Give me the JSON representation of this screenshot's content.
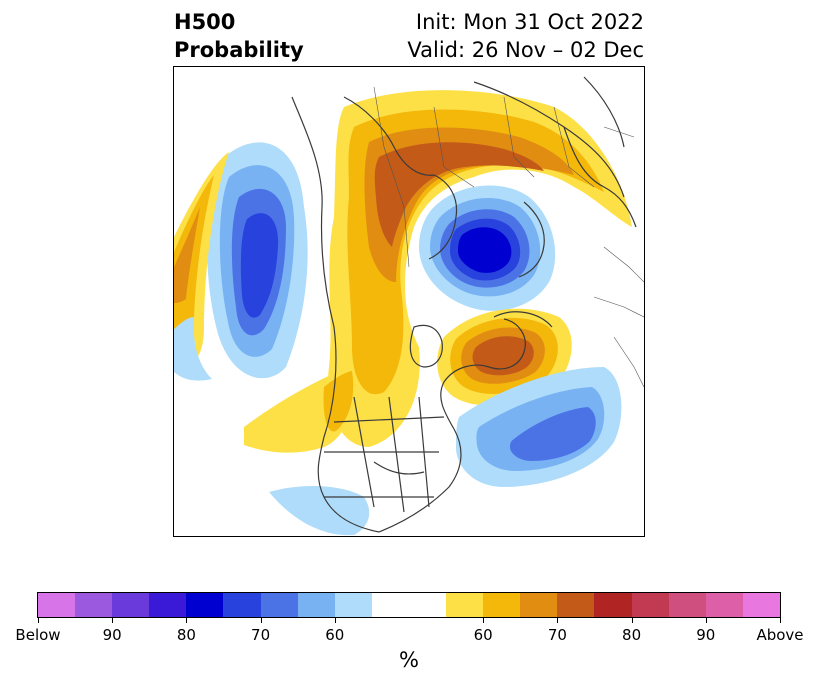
{
  "title": {
    "left_line1": "H500",
    "left_line2": "Probability",
    "right_line1": "Init: Mon 31 Oct 2022",
    "right_line2": "Valid: 26 Nov – 02 Dec"
  },
  "colorbar": {
    "unit": "%",
    "colors": [
      "#d774e8",
      "#9b59e0",
      "#6b3adb",
      "#3a1ad6",
      "#0000d0",
      "#2842dd",
      "#4c73e6",
      "#78b2f3",
      "#aedcfa",
      "#ffffff",
      "#ffffff",
      "#fde046",
      "#f4b80b",
      "#e08d12",
      "#c45a18",
      "#b02424",
      "#c23a52",
      "#cf4f7e",
      "#dc5fa8",
      "#e878df"
    ],
    "labels": [
      "Below",
      "90",
      "80",
      "70",
      "60",
      "60",
      "70",
      "80",
      "90",
      "Above"
    ]
  },
  "colors": {
    "below_60": "#aedcfa",
    "below_70": "#78b2f3",
    "below_80": "#4c73e6",
    "below_90": "#2842dd",
    "below_core": "#0000d0",
    "above_60": "#fde046",
    "above_70": "#f4b80b",
    "above_80": "#e08d12",
    "above_90": "#c45a18",
    "coast": "#3a3a3a"
  }
}
